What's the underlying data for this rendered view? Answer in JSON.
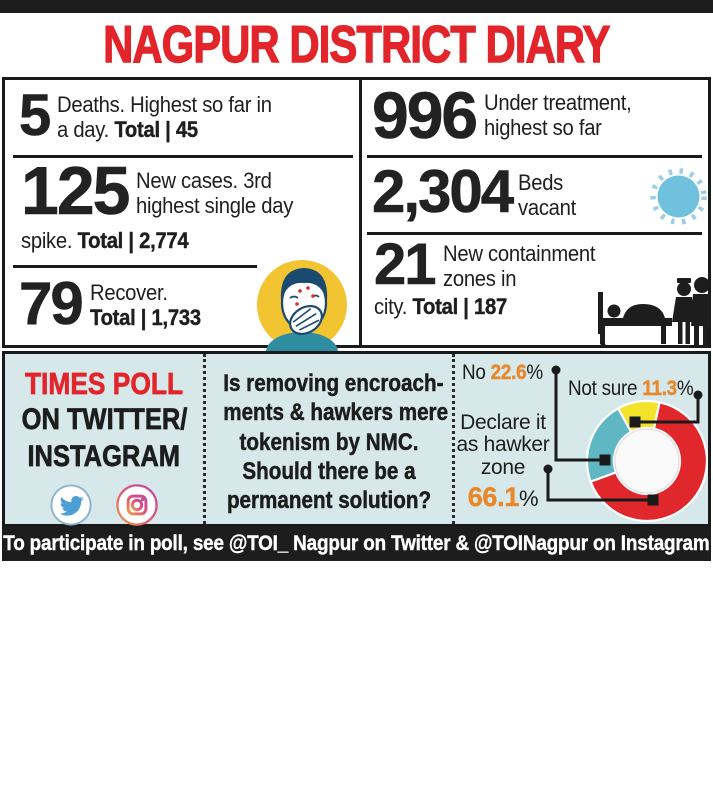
{
  "header": {
    "title": "NAGPUR DISTRICT DIARY"
  },
  "stats": {
    "left": [
      {
        "number": "5",
        "line1": "Deaths. Highest so far in",
        "line2": "a day. ",
        "total": "Total | 45"
      },
      {
        "number": "125",
        "line1": "New cases. 3rd",
        "line2": "highest single day",
        "line3": "spike. ",
        "total": "Total | 2,774"
      },
      {
        "number": "79",
        "line1": "Recover.",
        "total": "Total | 1,733"
      }
    ],
    "right": [
      {
        "number": "996",
        "line1": "Under treatment,",
        "line2": "highest so far"
      },
      {
        "number": "2,304",
        "line1": "Beds",
        "line2": "vacant"
      },
      {
        "number": "21",
        "line1": "New containment",
        "line2": "zones in",
        "line3": "city. ",
        "total": "Total | 187"
      }
    ]
  },
  "icons": {
    "stats": [
      "sneezing-person-icon",
      "coronavirus-icon",
      "hospital-patient-icon"
    ],
    "brand": [
      "twitter-icon",
      "instagram-icon"
    ]
  },
  "poll": {
    "heading": "TIMES POLL",
    "heading2": "ON TWITTER/",
    "heading3": "INSTAGRAM",
    "question_lines": [
      "Is removing encroach-",
      "ments & hawkers mere",
      "tokenism by NMC.",
      "Should there be a",
      "permanent solution?"
    ],
    "results": [
      {
        "label": "No ",
        "value": "22.6",
        "suffix": "%"
      },
      {
        "label": "Not sure ",
        "value": "11.3",
        "suffix": "%"
      },
      {
        "label_lines": [
          "Declare it",
          "as hawker",
          "zone"
        ],
        "value": "66.1",
        "suffix": "%"
      }
    ]
  },
  "footer": {
    "text": "To participate in poll, see @TOI_ Nagpur on Twitter & @TOINagpur on Instagram"
  },
  "colors": {
    "accent_red": "#e2252b",
    "poll_bg": "#d7e8ea",
    "percent_orange": "#e8882b",
    "bar_black": "#1d1d1d"
  },
  "chart_data": {
    "type": "pie",
    "donut": true,
    "title": "Times poll: Is removing encroachments & hawkers mere tokenism by NMC. Should there be a permanent solution?",
    "labels": [
      "Declare it as hawker zone",
      "No",
      "Not sure"
    ],
    "values": [
      66.1,
      22.6,
      11.3
    ],
    "colors": [
      "#e0272c",
      "#5fb7c3",
      "#f3e22a"
    ],
    "start_angle_deg": 12,
    "legend_position": "callout-labels"
  }
}
